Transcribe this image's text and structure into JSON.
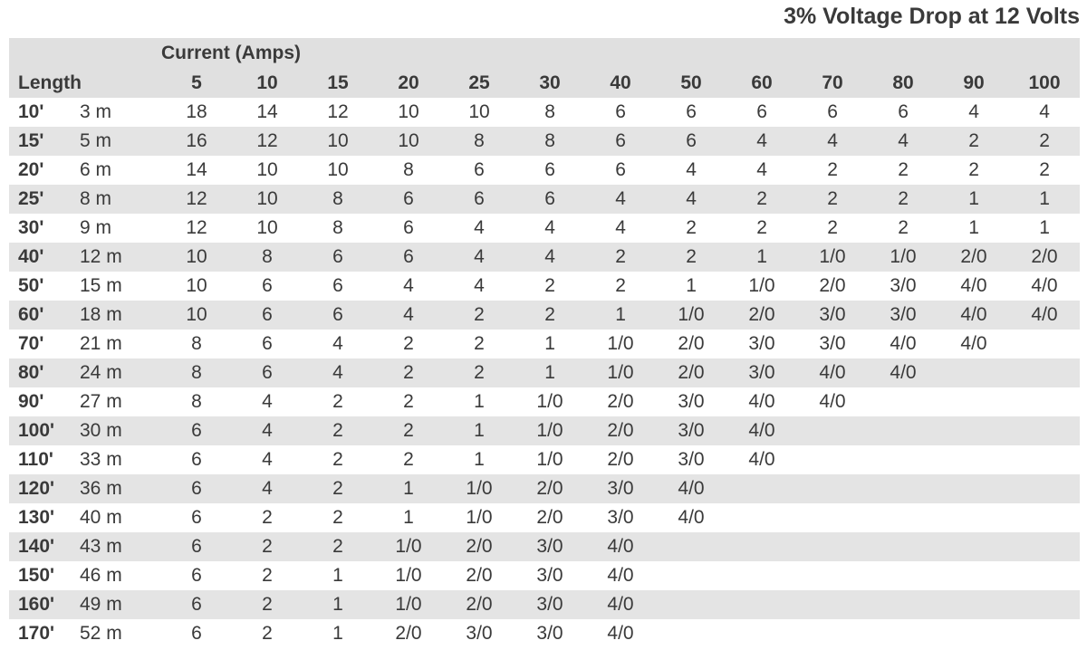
{
  "title": "3% Voltage Drop at 12 Volts",
  "header": {
    "current_label": "Current (Amps)",
    "length_label": "Length",
    "amps": [
      "5",
      "10",
      "15",
      "20",
      "25",
      "30",
      "40",
      "50",
      "60",
      "70",
      "80",
      "90",
      "100"
    ]
  },
  "rows": [
    {
      "feet": "10'",
      "meters": "3 m",
      "values": [
        "18",
        "14",
        "12",
        "10",
        "10",
        "8",
        "6",
        "6",
        "6",
        "6",
        "6",
        "4",
        "4"
      ]
    },
    {
      "feet": "15'",
      "meters": "5 m",
      "values": [
        "16",
        "12",
        "10",
        "10",
        "8",
        "8",
        "6",
        "6",
        "4",
        "4",
        "4",
        "2",
        "2"
      ]
    },
    {
      "feet": "20'",
      "meters": "6 m",
      "values": [
        "14",
        "10",
        "10",
        "8",
        "6",
        "6",
        "6",
        "4",
        "4",
        "2",
        "2",
        "2",
        "2"
      ]
    },
    {
      "feet": "25'",
      "meters": "8 m",
      "values": [
        "12",
        "10",
        "8",
        "6",
        "6",
        "6",
        "4",
        "4",
        "2",
        "2",
        "2",
        "1",
        "1"
      ]
    },
    {
      "feet": "30'",
      "meters": "9 m",
      "values": [
        "12",
        "10",
        "8",
        "6",
        "4",
        "4",
        "4",
        "2",
        "2",
        "2",
        "2",
        "1",
        "1"
      ]
    },
    {
      "feet": "40'",
      "meters": "12 m",
      "values": [
        "10",
        "8",
        "6",
        "6",
        "4",
        "4",
        "2",
        "2",
        "1",
        "1/0",
        "1/0",
        "2/0",
        "2/0"
      ]
    },
    {
      "feet": "50'",
      "meters": "15 m",
      "values": [
        "10",
        "6",
        "6",
        "4",
        "4",
        "2",
        "2",
        "1",
        "1/0",
        "2/0",
        "3/0",
        "4/0",
        "4/0"
      ]
    },
    {
      "feet": "60'",
      "meters": "18 m",
      "values": [
        "10",
        "6",
        "6",
        "4",
        "2",
        "2",
        "1",
        "1/0",
        "2/0",
        "3/0",
        "3/0",
        "4/0",
        "4/0"
      ]
    },
    {
      "feet": "70'",
      "meters": "21 m",
      "values": [
        "8",
        "6",
        "4",
        "2",
        "2",
        "1",
        "1/0",
        "2/0",
        "3/0",
        "3/0",
        "4/0",
        "4/0",
        ""
      ]
    },
    {
      "feet": "80'",
      "meters": "24 m",
      "values": [
        "8",
        "6",
        "4",
        "2",
        "2",
        "1",
        "1/0",
        "2/0",
        "3/0",
        "4/0",
        "4/0",
        "",
        ""
      ]
    },
    {
      "feet": "90'",
      "meters": "27 m",
      "values": [
        "8",
        "4",
        "2",
        "2",
        "1",
        "1/0",
        "2/0",
        "3/0",
        "4/0",
        "4/0",
        "",
        "",
        ""
      ]
    },
    {
      "feet": "100'",
      "meters": "30 m",
      "values": [
        "6",
        "4",
        "2",
        "2",
        "1",
        "1/0",
        "2/0",
        "3/0",
        "4/0",
        "",
        "",
        "",
        ""
      ]
    },
    {
      "feet": "110'",
      "meters": "33 m",
      "values": [
        "6",
        "4",
        "2",
        "2",
        "1",
        "1/0",
        "2/0",
        "3/0",
        "4/0",
        "",
        "",
        "",
        ""
      ]
    },
    {
      "feet": "120'",
      "meters": "36 m",
      "values": [
        "6",
        "4",
        "2",
        "1",
        "1/0",
        "2/0",
        "3/0",
        "4/0",
        "",
        "",
        "",
        "",
        ""
      ]
    },
    {
      "feet": "130'",
      "meters": "40 m",
      "values": [
        "6",
        "2",
        "2",
        "1",
        "1/0",
        "2/0",
        "3/0",
        "4/0",
        "",
        "",
        "",
        "",
        ""
      ]
    },
    {
      "feet": "140'",
      "meters": "43 m",
      "values": [
        "6",
        "2",
        "2",
        "1/0",
        "2/0",
        "3/0",
        "4/0",
        "",
        "",
        "",
        "",
        "",
        ""
      ]
    },
    {
      "feet": "150'",
      "meters": "46 m",
      "values": [
        "6",
        "2",
        "1",
        "1/0",
        "2/0",
        "3/0",
        "4/0",
        "",
        "",
        "",
        "",
        "",
        ""
      ]
    },
    {
      "feet": "160'",
      "meters": "49 m",
      "values": [
        "6",
        "2",
        "1",
        "1/0",
        "2/0",
        "3/0",
        "4/0",
        "",
        "",
        "",
        "",
        "",
        ""
      ]
    },
    {
      "feet": "170'",
      "meters": "52 m",
      "values": [
        "6",
        "2",
        "1",
        "2/0",
        "3/0",
        "3/0",
        "4/0",
        "",
        "",
        "",
        "",
        "",
        ""
      ]
    }
  ]
}
